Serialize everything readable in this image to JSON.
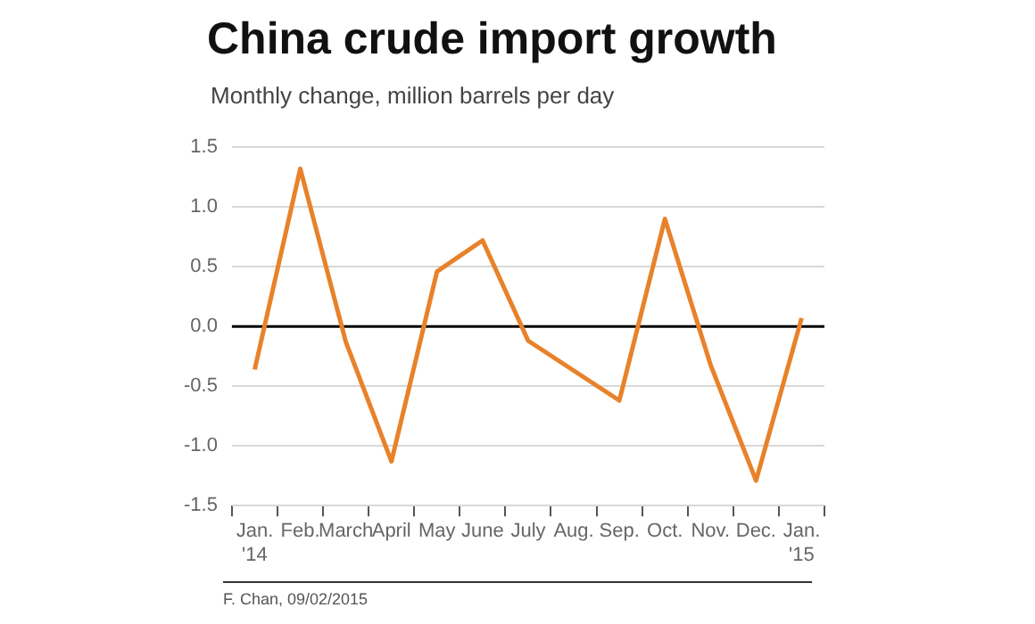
{
  "chart_data": {
    "type": "line",
    "title": "China crude import growth",
    "subtitle": "Monthly change, million barrels per day",
    "categories": [
      "Jan.\n'14",
      "Feb.",
      "March",
      "April",
      "May",
      "June",
      "July",
      "Aug.",
      "Sep.",
      "Oct.",
      "Nov.",
      "Dec.",
      "Jan.\n'15"
    ],
    "series": [
      {
        "color": "#e8822a",
        "values": [
          -0.36,
          1.32,
          -0.13,
          -1.13,
          0.46,
          0.72,
          -0.12,
          -0.37,
          -0.62,
          0.9,
          -0.32,
          -1.29,
          0.07
        ]
      }
    ],
    "ylim": [
      -1.5,
      1.5
    ],
    "yticks": [
      {
        "value": -1.5,
        "label": "-1.5"
      },
      {
        "value": -1.0,
        "label": "-1.0"
      },
      {
        "value": -0.5,
        "label": "-0.5"
      },
      {
        "value": 0,
        "label": "0.0"
      },
      {
        "value": 0.5,
        "label": "0.5"
      },
      {
        "value": 1.0,
        "label": "1.0"
      },
      {
        "value": 1.5,
        "label": "1.5"
      }
    ],
    "grid": "y",
    "legend": false,
    "marker": "none",
    "line_style": "solid",
    "ref_lines": [
      {
        "axis": "y",
        "value": 0,
        "color": "#000000"
      }
    ],
    "annotations": [
      "F. Chan, 09/02/2015"
    ]
  }
}
